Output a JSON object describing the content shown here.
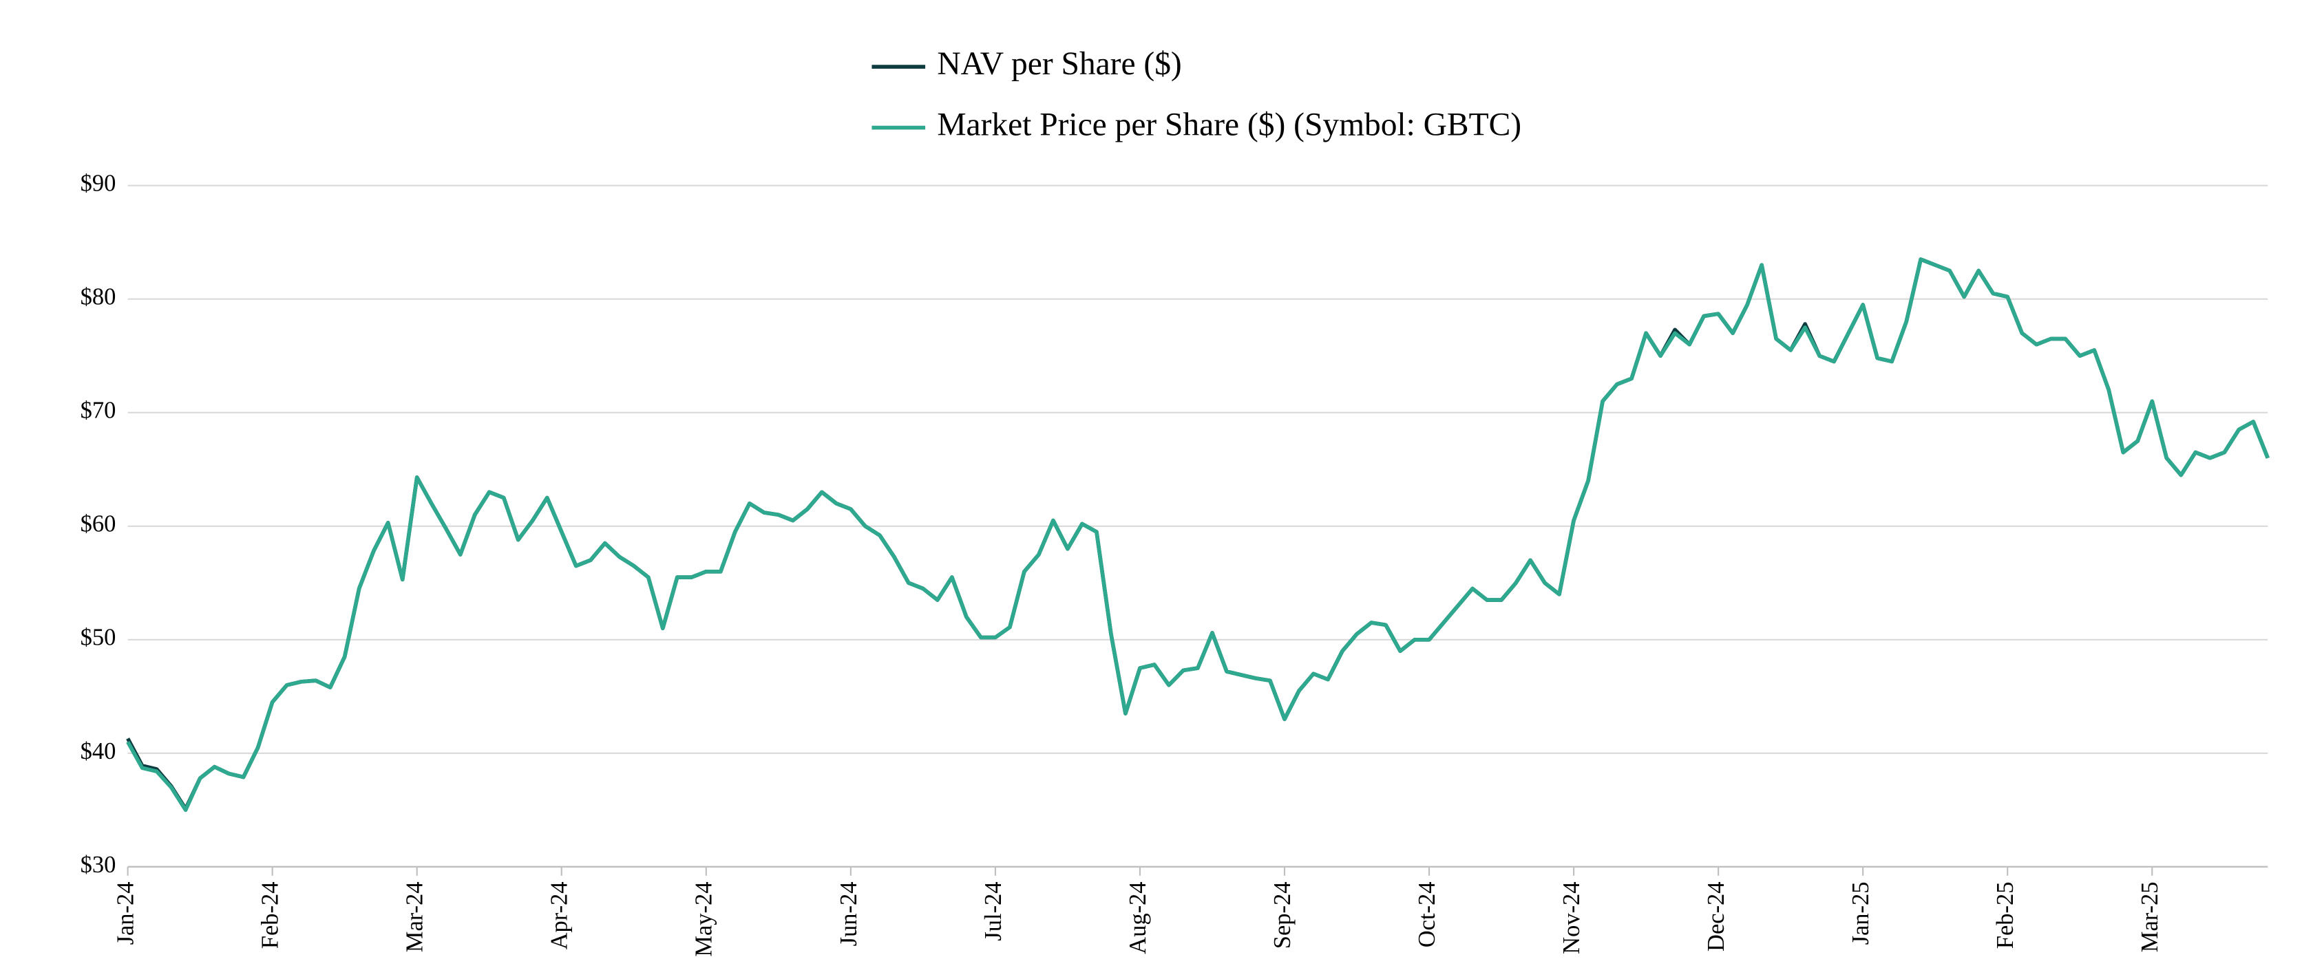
{
  "chart_data": {
    "type": "line",
    "categories": [
      "Jan-24",
      null,
      null,
      null,
      null,
      null,
      null,
      null,
      null,
      null,
      "Feb-24",
      null,
      null,
      null,
      null,
      null,
      null,
      null,
      null,
      null,
      "Mar-24",
      null,
      null,
      null,
      null,
      null,
      null,
      null,
      null,
      null,
      "Apr-24",
      null,
      null,
      null,
      null,
      null,
      null,
      null,
      null,
      null,
      "May-24",
      null,
      null,
      null,
      null,
      null,
      null,
      null,
      null,
      null,
      "Jun-24",
      null,
      null,
      null,
      null,
      null,
      null,
      null,
      null,
      null,
      "Jul-24",
      null,
      null,
      null,
      null,
      null,
      null,
      null,
      null,
      null,
      "Aug-24",
      null,
      null,
      null,
      null,
      null,
      null,
      null,
      null,
      null,
      "Sep-24",
      null,
      null,
      null,
      null,
      null,
      null,
      null,
      null,
      null,
      "Oct-24",
      null,
      null,
      null,
      null,
      null,
      null,
      null,
      null,
      null,
      "Nov-24",
      null,
      null,
      null,
      null,
      null,
      null,
      null,
      null,
      null,
      "Dec-24",
      null,
      null,
      null,
      null,
      null,
      null,
      null,
      null,
      null,
      "Jan-25",
      null,
      null,
      null,
      null,
      null,
      null,
      null,
      null,
      null,
      "Feb-25",
      null,
      null,
      null,
      null,
      null,
      null,
      null,
      null,
      null,
      "Mar-25",
      null,
      null,
      null,
      null,
      null,
      null,
      null,
      null
    ],
    "series": [
      {
        "name": "NAV per Share ($)",
        "color": "#0d3b3f",
        "values": [
          41.3,
          38.9,
          38.6,
          37.1,
          35.1,
          37.8,
          38.8,
          38.2,
          37.9,
          40.5,
          44.5,
          46.0,
          46.3,
          46.4,
          45.8,
          48.5,
          54.5,
          57.8,
          60.3,
          55.3,
          64.3,
          62.0,
          59.8,
          57.5,
          61.0,
          63.0,
          62.5,
          58.8,
          60.5,
          62.5,
          59.5,
          56.5,
          57.0,
          58.5,
          57.3,
          56.5,
          55.5,
          51.0,
          55.5,
          55.5,
          56.0,
          56.0,
          59.5,
          62.0,
          61.2,
          61.0,
          60.5,
          61.5,
          63.0,
          62.0,
          61.5,
          60.0,
          59.2,
          57.3,
          55.0,
          54.5,
          53.5,
          55.5,
          52.0,
          50.2,
          50.2,
          51.1,
          56.0,
          57.5,
          60.5,
          58.0,
          60.2,
          59.5,
          50.5,
          43.5,
          47.5,
          47.8,
          46.0,
          47.3,
          47.5,
          50.6,
          47.2,
          46.9,
          46.6,
          46.4,
          43.0,
          45.5,
          47.0,
          46.5,
          49.0,
          50.5,
          51.5,
          51.3,
          49.0,
          50.0,
          50.0,
          51.5,
          53.0,
          54.5,
          53.5,
          53.5,
          55.0,
          57.0,
          55.0,
          54.0,
          60.5,
          64.0,
          71.0,
          72.5,
          73.0,
          77.0,
          75.0,
          77.3,
          76.0,
          78.5,
          78.7,
          77.0,
          79.5,
          83.0,
          76.5,
          75.5,
          77.8,
          75.0,
          74.5,
          77.0,
          79.5,
          74.8,
          74.5,
          78.0,
          83.5,
          83.0,
          82.5,
          80.2,
          82.5,
          80.5,
          80.2,
          77.0,
          76.0,
          76.5,
          76.5,
          75.0,
          75.5,
          72.0,
          66.5,
          67.5,
          71.0,
          66.0,
          64.5,
          66.5,
          66.0,
          66.5,
          68.5,
          69.2,
          66.0
        ]
      },
      {
        "name": "Market Price per Share ($) (Symbol: GBTC)",
        "color": "#2ea88e",
        "values": [
          41.0,
          38.7,
          38.4,
          37.0,
          35.0,
          37.8,
          38.8,
          38.2,
          37.9,
          40.5,
          44.5,
          46.0,
          46.3,
          46.4,
          45.8,
          48.5,
          54.5,
          57.8,
          60.3,
          55.3,
          64.3,
          62.0,
          59.8,
          57.5,
          61.0,
          63.0,
          62.5,
          58.8,
          60.5,
          62.5,
          59.5,
          56.5,
          57.0,
          58.5,
          57.3,
          56.5,
          55.5,
          51.0,
          55.5,
          55.5,
          56.0,
          56.0,
          59.5,
          62.0,
          61.2,
          61.0,
          60.5,
          61.5,
          63.0,
          62.0,
          61.5,
          60.0,
          59.2,
          57.3,
          55.0,
          54.5,
          53.5,
          55.5,
          52.0,
          50.2,
          50.2,
          51.1,
          56.0,
          57.5,
          60.5,
          58.0,
          60.2,
          59.5,
          50.5,
          43.5,
          47.5,
          47.8,
          46.0,
          47.3,
          47.5,
          50.6,
          47.2,
          46.9,
          46.6,
          46.4,
          43.0,
          45.5,
          47.0,
          46.5,
          49.0,
          50.5,
          51.5,
          51.3,
          49.0,
          50.0,
          50.0,
          51.5,
          53.0,
          54.5,
          53.5,
          53.5,
          55.0,
          57.0,
          55.0,
          54.0,
          60.5,
          64.0,
          71.0,
          72.5,
          73.0,
          77.0,
          75.0,
          77.0,
          76.0,
          78.5,
          78.7,
          77.0,
          79.5,
          83.0,
          76.5,
          75.5,
          77.5,
          75.0,
          74.5,
          77.0,
          79.5,
          74.8,
          74.5,
          78.0,
          83.5,
          83.0,
          82.5,
          80.2,
          82.5,
          80.5,
          80.2,
          77.0,
          76.0,
          76.5,
          76.5,
          75.0,
          75.5,
          72.0,
          66.5,
          67.5,
          71.0,
          66.0,
          64.5,
          66.5,
          66.0,
          66.5,
          68.5,
          69.2,
          66.0
        ]
      }
    ],
    "ylim": [
      30,
      90
    ],
    "yticks": [
      {
        "value": 30,
        "label": "$30"
      },
      {
        "value": 40,
        "label": "$40"
      },
      {
        "value": 50,
        "label": "$50"
      },
      {
        "value": 60,
        "label": "$60"
      },
      {
        "value": 70,
        "label": "$70"
      },
      {
        "value": 80,
        "label": "$80"
      },
      {
        "value": 90,
        "label": "$90"
      }
    ],
    "grid": true,
    "legend": "top"
  }
}
